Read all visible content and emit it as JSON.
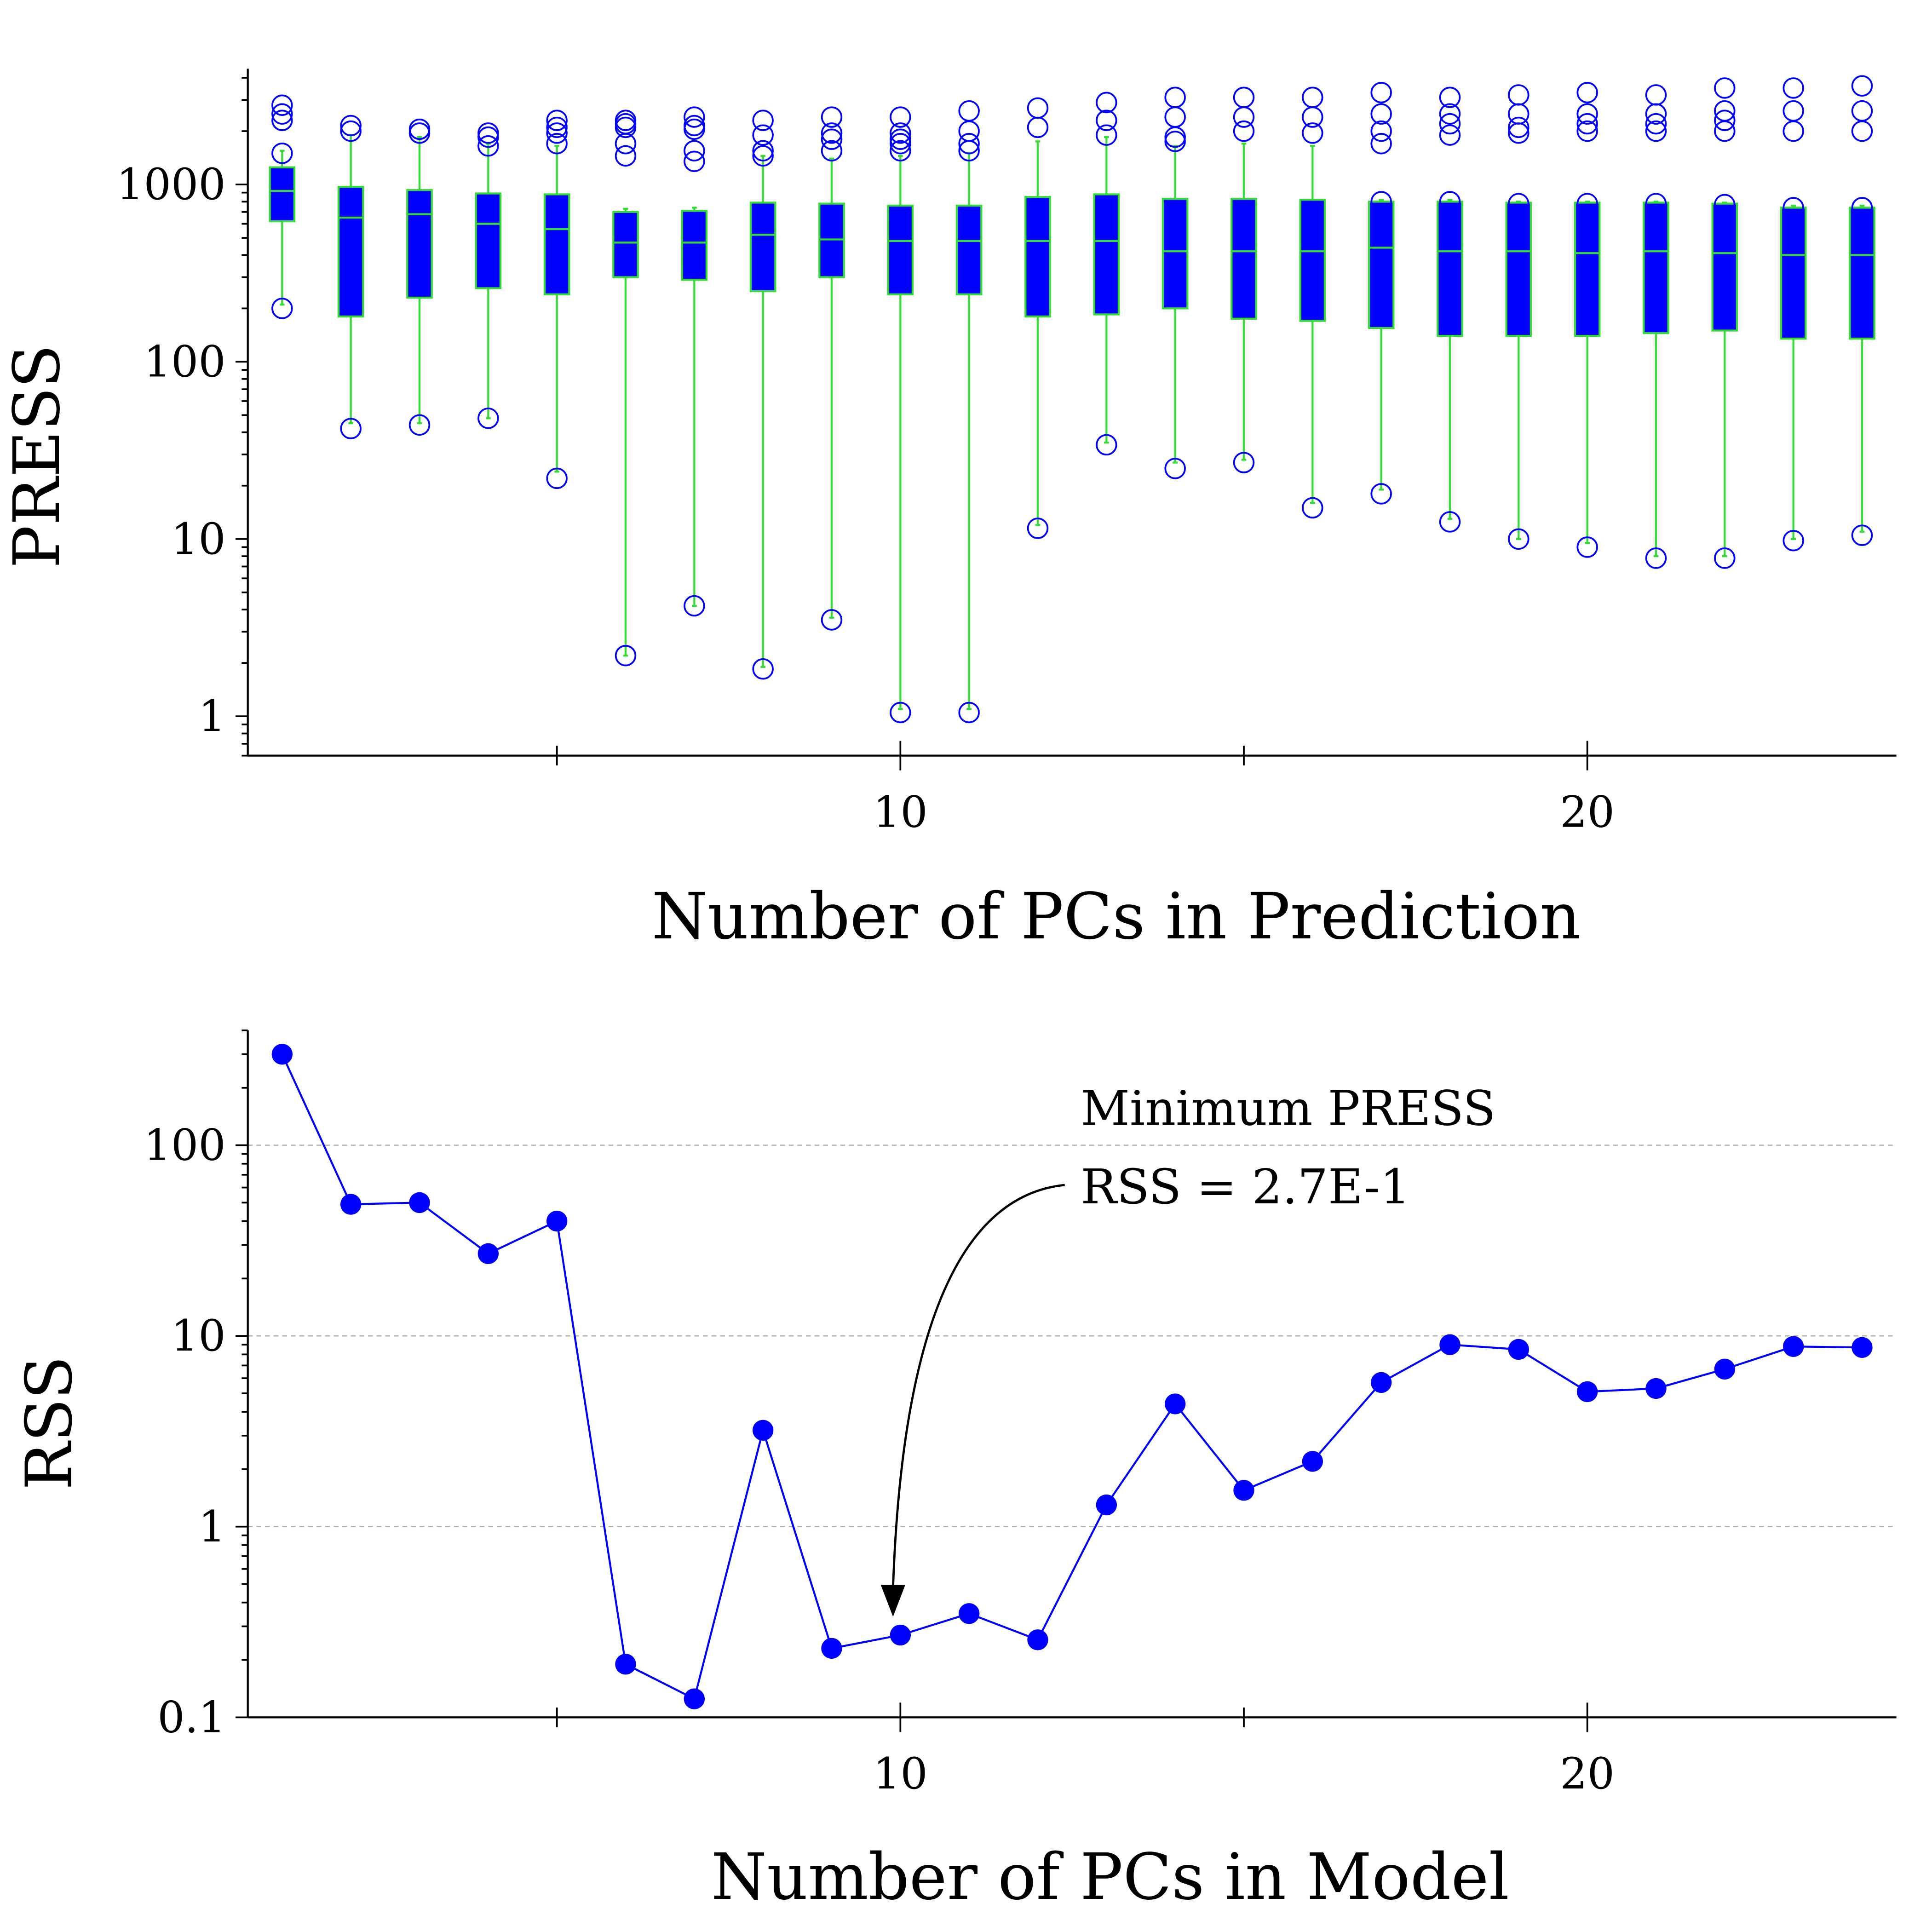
{
  "colors": {
    "box_fill": "#0000ff",
    "box_stroke": "#33dd33",
    "outlier": "#0000ff",
    "line": "#0000ff",
    "grid": "#b0b0b0",
    "axis": "#000000"
  },
  "chart_data": [
    {
      "type": "box",
      "id": "press",
      "xlabel": "Number of PCs in Prediction",
      "ylabel": "PRESS",
      "yscale": "log",
      "ylim": [
        0.6,
        4500
      ],
      "xlim": [
        0.5,
        24.5
      ],
      "xticks_major": [
        10,
        20
      ],
      "xticks_minor": [
        5,
        15
      ],
      "yticks": [
        1,
        10,
        100,
        1000
      ],
      "ytick_labels": [
        "1",
        "10",
        "100",
        "1000"
      ],
      "xtick_labels": [
        "10",
        "20"
      ],
      "boxes": [
        {
          "x": 1,
          "q1": 620,
          "median": 920,
          "q3": 1250,
          "whislo": 210,
          "whishi": 1550,
          "fliers": [
            200,
            1500,
            2300,
            2500,
            2800
          ]
        },
        {
          "x": 2,
          "q1": 180,
          "median": 650,
          "q3": 970,
          "whislo": 45,
          "whishi": 1900,
          "fliers": [
            42,
            2000,
            2150
          ]
        },
        {
          "x": 3,
          "q1": 230,
          "median": 680,
          "q3": 930,
          "whislo": 45,
          "whishi": 1850,
          "fliers": [
            44,
            1950,
            2050
          ]
        },
        {
          "x": 4,
          "q1": 260,
          "median": 600,
          "q3": 890,
          "whislo": 48,
          "whishi": 1700,
          "fliers": [
            48,
            1650,
            1850,
            1950
          ]
        },
        {
          "x": 5,
          "q1": 240,
          "median": 560,
          "q3": 880,
          "whislo": 24,
          "whishi": 1650,
          "fliers": [
            22,
            1700,
            1950,
            2100,
            2300
          ]
        },
        {
          "x": 6,
          "q1": 300,
          "median": 470,
          "q3": 700,
          "whislo": 2.2,
          "whishi": 730,
          "fliers": [
            2.2,
            1450,
            1700,
            2100,
            2200,
            2300
          ]
        },
        {
          "x": 7,
          "q1": 290,
          "median": 470,
          "q3": 710,
          "whislo": 4.2,
          "whishi": 740,
          "fliers": [
            4.2,
            1350,
            1550,
            2050,
            2150,
            2400
          ]
        },
        {
          "x": 8,
          "q1": 250,
          "median": 520,
          "q3": 790,
          "whislo": 1.9,
          "whishi": 1450,
          "fliers": [
            1.85,
            1450,
            1550,
            1900,
            2300
          ]
        },
        {
          "x": 9,
          "q1": 300,
          "median": 490,
          "q3": 780,
          "whislo": 3.6,
          "whishi": 1400,
          "fliers": [
            3.5,
            1550,
            1800,
            1950,
            2400
          ]
        },
        {
          "x": 10,
          "q1": 240,
          "median": 480,
          "q3": 760,
          "whislo": 1.1,
          "whishi": 1450,
          "fliers": [
            1.05,
            1550,
            1700,
            1800,
            1950,
            2400
          ]
        },
        {
          "x": 11,
          "q1": 240,
          "median": 480,
          "q3": 760,
          "whislo": 1.1,
          "whishi": 1500,
          "fliers": [
            1.05,
            1550,
            1700,
            2000,
            2600
          ]
        },
        {
          "x": 12,
          "q1": 180,
          "median": 480,
          "q3": 850,
          "whislo": 12,
          "whishi": 1750,
          "fliers": [
            11.5,
            2100,
            2700
          ]
        },
        {
          "x": 13,
          "q1": 185,
          "median": 480,
          "q3": 880,
          "whislo": 35,
          "whishi": 1850,
          "fliers": [
            34,
            1900,
            2300,
            2900
          ]
        },
        {
          "x": 14,
          "q1": 200,
          "median": 420,
          "q3": 830,
          "whislo": 27,
          "whishi": 1650,
          "fliers": [
            25,
            1750,
            1850,
            2400,
            3100
          ]
        },
        {
          "x": 15,
          "q1": 175,
          "median": 420,
          "q3": 830,
          "whislo": 28,
          "whishi": 1700,
          "fliers": [
            27,
            2000,
            2400,
            3100
          ]
        },
        {
          "x": 16,
          "q1": 170,
          "median": 420,
          "q3": 820,
          "whislo": 16,
          "whishi": 1650,
          "fliers": [
            15,
            1950,
            2400,
            3100
          ]
        },
        {
          "x": 17,
          "q1": 155,
          "median": 440,
          "q3": 800,
          "whislo": 19,
          "whishi": 820,
          "fliers": [
            18,
            800,
            1700,
            2000,
            2500,
            3300
          ]
        },
        {
          "x": 18,
          "q1": 140,
          "median": 420,
          "q3": 800,
          "whislo": 13,
          "whishi": 820,
          "fliers": [
            12.5,
            800,
            1900,
            2200,
            2500,
            3100
          ]
        },
        {
          "x": 19,
          "q1": 140,
          "median": 420,
          "q3": 790,
          "whislo": 10,
          "whishi": 800,
          "fliers": [
            10,
            780,
            1950,
            2100,
            2500,
            3200
          ]
        },
        {
          "x": 20,
          "q1": 140,
          "median": 410,
          "q3": 790,
          "whislo": 9.5,
          "whishi": 800,
          "fliers": [
            9,
            780,
            2000,
            2200,
            2500,
            3300
          ]
        },
        {
          "x": 21,
          "q1": 145,
          "median": 420,
          "q3": 790,
          "whislo": 8,
          "whishi": 800,
          "fliers": [
            7.8,
            780,
            2000,
            2200,
            2500,
            3200
          ]
        },
        {
          "x": 22,
          "q1": 150,
          "median": 410,
          "q3": 780,
          "whislo": 8,
          "whishi": 790,
          "fliers": [
            7.8,
            770,
            2000,
            2300,
            2600,
            3500
          ]
        },
        {
          "x": 23,
          "q1": 135,
          "median": 400,
          "q3": 740,
          "whislo": 10,
          "whishi": 760,
          "fliers": [
            9.8,
            740,
            2000,
            2600,
            3500
          ]
        },
        {
          "x": 24,
          "q1": 135,
          "median": 400,
          "q3": 740,
          "whislo": 11,
          "whishi": 760,
          "fliers": [
            10.5,
            740,
            2000,
            2600,
            3600
          ]
        }
      ]
    },
    {
      "type": "line",
      "id": "rss",
      "xlabel": "Number of PCs in Model",
      "ylabel": "RSS",
      "yscale": "log",
      "ylim": [
        0.1,
        400
      ],
      "xlim": [
        0.5,
        24.5
      ],
      "xticks_major": [
        10,
        20
      ],
      "xticks_minor": [
        5,
        15
      ],
      "yticks": [
        0.1,
        1,
        10,
        100
      ],
      "ytick_labels": [
        "0.1",
        "1",
        "10",
        "100"
      ],
      "xtick_labels": [
        "10",
        "20"
      ],
      "grid": true,
      "x": [
        1,
        2,
        3,
        4,
        5,
        6,
        7,
        8,
        9,
        10,
        11,
        12,
        13,
        14,
        15,
        16,
        17,
        18,
        19,
        20,
        21,
        22,
        23,
        24
      ],
      "y": [
        300,
        49,
        50,
        27,
        40,
        0.19,
        0.125,
        3.2,
        0.23,
        0.27,
        0.35,
        0.255,
        1.3,
        4.4,
        1.55,
        2.2,
        5.7,
        9.0,
        8.5,
        5.1,
        5.3,
        6.7,
        8.8,
        8.7
      ],
      "annotation": {
        "lines": [
          "Minimum PRESS",
          "RSS = 2.7E-1"
        ],
        "target_x": 10,
        "target_y": 0.27
      }
    }
  ]
}
